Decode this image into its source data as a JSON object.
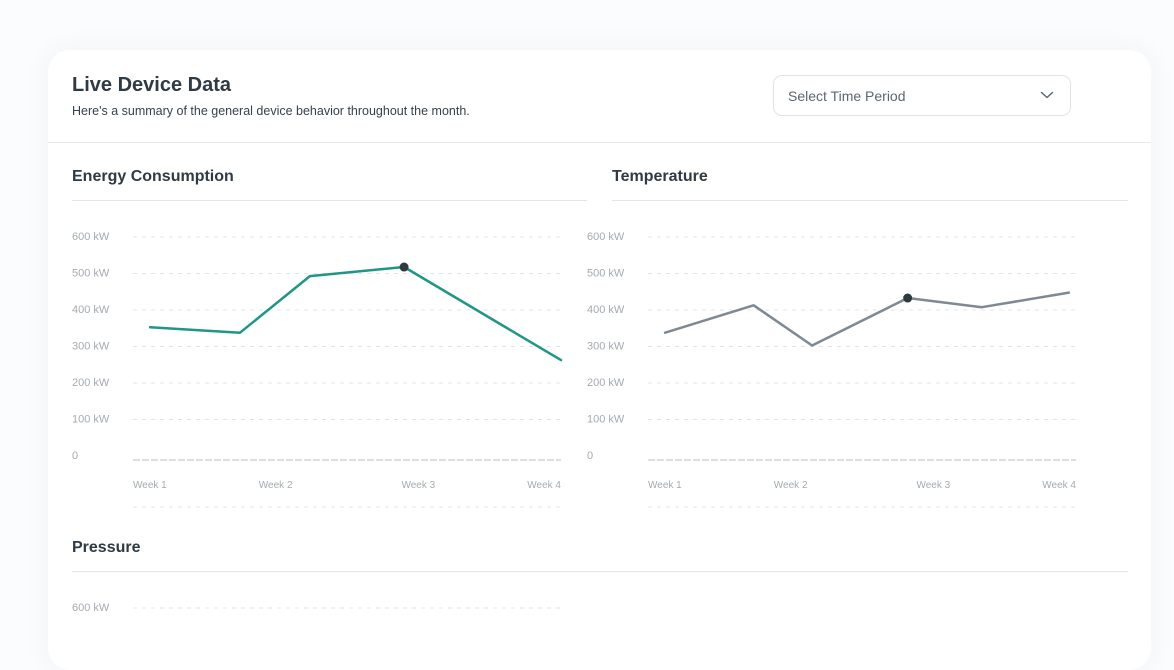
{
  "header": {
    "title": "Live Device Data",
    "subtitle": "Here's a summary of the general device behavior throughout the month."
  },
  "time_select": {
    "placeholder": "Select Time Period",
    "icon": "chevron-down-icon"
  },
  "sections": {
    "energy": {
      "title": "Energy Consumption"
    },
    "temperature": {
      "title": "Temperature"
    },
    "pressure": {
      "title": "Pressure"
    }
  },
  "colors": {
    "energy_line": "#1f9686",
    "temperature_line": "#7f8993",
    "marker": "#2f3a40",
    "grid": "#e1e4e7",
    "tick_text": "#a3aab1"
  },
  "chart_data": [
    {
      "type": "line",
      "title": "Energy Consumption",
      "y_ticks": [
        "600 kW",
        "500 kW",
        "400 kW",
        "300 kW",
        "200 kW",
        "100 kW",
        "0"
      ],
      "ylim": [
        0,
        600
      ],
      "x_ticks": [
        "Week 1",
        "Week 2",
        "Week 3",
        "Week 4"
      ],
      "xlim": [
        1,
        4
      ],
      "series": [
        {
          "x": [
            1.12,
            1.75,
            2.24,
            2.9,
            4.0
          ],
          "values": [
            350,
            335,
            490,
            515,
            260
          ]
        }
      ],
      "highlight_index": 3,
      "grid": "dashed horizontal"
    },
    {
      "type": "line",
      "title": "Temperature",
      "y_ticks": [
        "600 kW",
        "500 kW",
        "400 kW",
        "300 kW",
        "200 kW",
        "100 kW",
        "0"
      ],
      "ylim": [
        0,
        600
      ],
      "x_ticks": [
        "Week 1",
        "Week 2",
        "Week 3",
        "Week 4"
      ],
      "xlim": [
        1,
        4
      ],
      "series": [
        {
          "x": [
            1.12,
            1.74,
            2.15,
            2.82,
            3.34,
            3.95
          ],
          "values": [
            335,
            410,
            300,
            430,
            405,
            445
          ]
        }
      ],
      "highlight_index": 3,
      "grid": "dashed horizontal"
    },
    {
      "type": "line",
      "title": "Pressure",
      "y_ticks": [
        "600 kW"
      ],
      "ylim": [
        0,
        600
      ],
      "series": []
    }
  ]
}
